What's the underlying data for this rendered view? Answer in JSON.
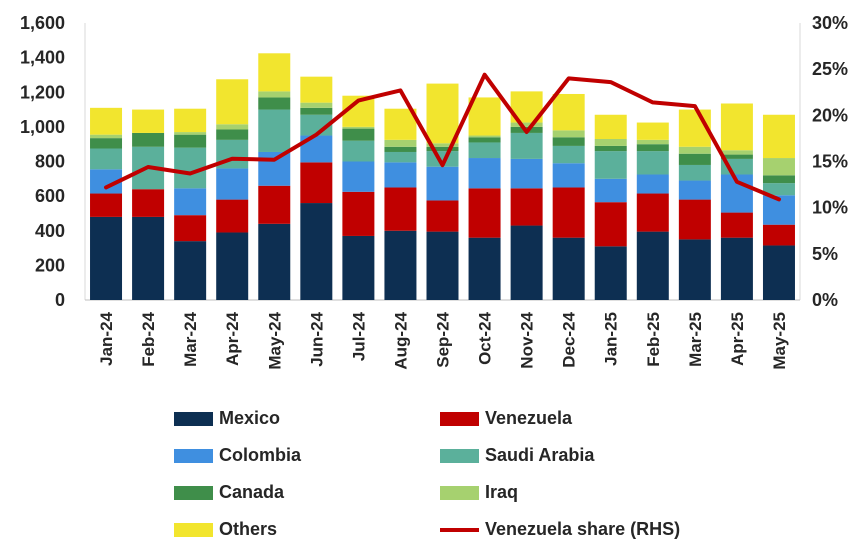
{
  "chart_data": {
    "type": "bar",
    "stacked": true,
    "categories": [
      "Jan-24",
      "Feb-24",
      "Mar-24",
      "Apr-24",
      "May-24",
      "Jun-24",
      "Jul-24",
      "Aug-24",
      "Sep-24",
      "Oct-24",
      "Nov-24",
      "Dec-24",
      "Jan-25",
      "Feb-25",
      "Mar-25",
      "Apr-25",
      "May-25"
    ],
    "series": [
      {
        "name": "Mexico",
        "color": "#0d2f52",
        "values": [
          480,
          480,
          340,
          390,
          440,
          560,
          370,
          400,
          395,
          360,
          430,
          360,
          310,
          395,
          350,
          360,
          315
        ]
      },
      {
        "name": "Venezuela",
        "color": "#c00000",
        "values": [
          135,
          160,
          150,
          190,
          220,
          235,
          255,
          250,
          180,
          285,
          215,
          290,
          255,
          220,
          230,
          145,
          120
        ]
      },
      {
        "name": "Colombia",
        "color": "#3f8fe0",
        "values": [
          140,
          0,
          155,
          180,
          195,
          155,
          175,
          145,
          195,
          175,
          170,
          140,
          135,
          110,
          110,
          220,
          170
        ]
      },
      {
        "name": "Saudi Arabia",
        "color": "#5bb09b",
        "values": [
          120,
          245,
          235,
          165,
          245,
          120,
          120,
          60,
          90,
          90,
          150,
          100,
          160,
          135,
          90,
          90,
          70
        ]
      },
      {
        "name": "Canada",
        "color": "#3f8e4a",
        "values": [
          60,
          80,
          75,
          60,
          70,
          40,
          70,
          30,
          25,
          30,
          35,
          50,
          30,
          40,
          65,
          25,
          45
        ]
      },
      {
        "name": "Iraq",
        "color": "#a6d16f",
        "values": [
          20,
          0,
          15,
          30,
          35,
          30,
          10,
          40,
          20,
          10,
          25,
          40,
          40,
          25,
          40,
          25,
          100
        ]
      },
      {
        "name": "Others",
        "color": "#f2e52e",
        "values": [
          155,
          135,
          135,
          260,
          220,
          150,
          180,
          180,
          345,
          220,
          180,
          210,
          140,
          100,
          215,
          270,
          250
        ]
      }
    ],
    "line_series": {
      "name": "Venezuela share (RHS)",
      "color": "#c00000",
      "axis": "right",
      "values": [
        12.2,
        14.4,
        13.7,
        15.3,
        15.2,
        17.9,
        21.6,
        22.7,
        14.6,
        24.4,
        18.2,
        24.0,
        23.6,
        21.4,
        21.0,
        12.8,
        10.9
      ]
    },
    "y_left": {
      "min": 0,
      "max": 1600,
      "ticks": [
        0,
        200,
        400,
        600,
        800,
        1000,
        1200,
        1400,
        1600
      ],
      "tick_labels": [
        "0",
        "200",
        "400",
        "600",
        "800",
        "1,000",
        "1,200",
        "1,400",
        "1,600"
      ]
    },
    "y_right": {
      "min": 0,
      "max": 30,
      "ticks": [
        0,
        5,
        10,
        15,
        20,
        25,
        30
      ],
      "tick_labels": [
        "0%",
        "5%",
        "10%",
        "15%",
        "20%",
        "25%",
        "30%"
      ]
    },
    "legend": [
      {
        "label": "Mexico",
        "color": "#0d2f52",
        "kind": "box"
      },
      {
        "label": "Venezuela",
        "color": "#c00000",
        "kind": "box"
      },
      {
        "label": "Colombia",
        "color": "#3f8fe0",
        "kind": "box"
      },
      {
        "label": "Saudi Arabia",
        "color": "#5bb09b",
        "kind": "box"
      },
      {
        "label": "Canada",
        "color": "#3f8e4a",
        "kind": "box"
      },
      {
        "label": "Iraq",
        "color": "#a6d16f",
        "kind": "box"
      },
      {
        "label": "Others",
        "color": "#f2e52e",
        "kind": "box"
      },
      {
        "label": "Venezuela share (RHS)",
        "color": "#c00000",
        "kind": "line"
      }
    ],
    "legend_placement": "bottom",
    "grid": false
  }
}
